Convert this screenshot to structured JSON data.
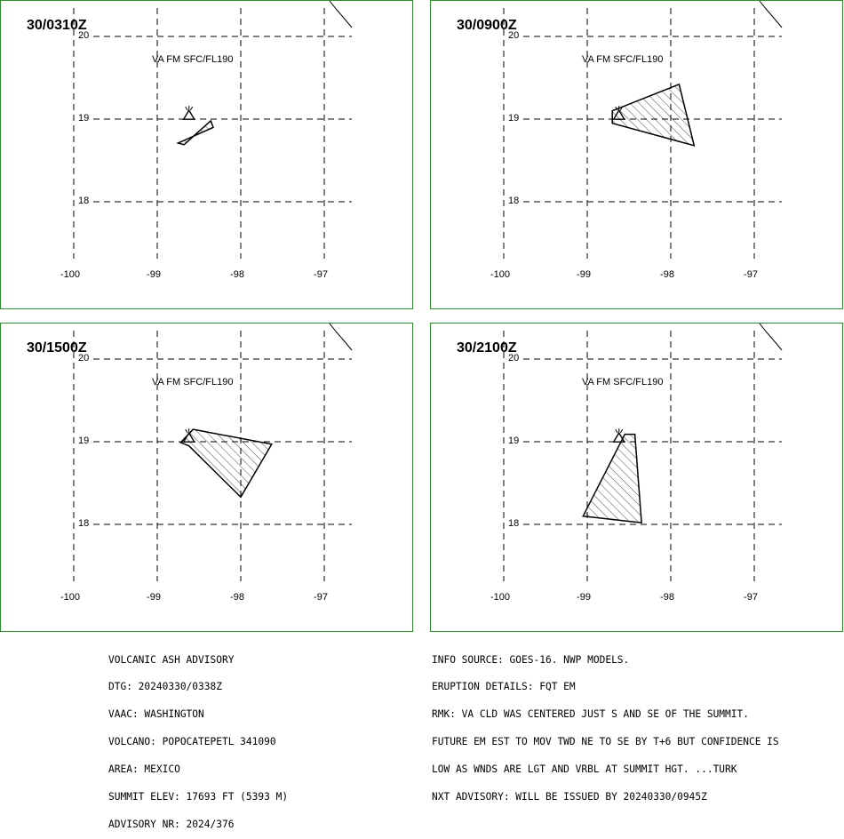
{
  "panels": [
    {
      "title": "30/0310Z",
      "layer": "VA FM SFC/FL190",
      "ash_polygon": [
        [
          -98.68,
          18.69
        ],
        [
          -98.36,
          18.98
        ],
        [
          -98.33,
          18.9
        ],
        [
          -98.75,
          18.71
        ]
      ]
    },
    {
      "title": "30/0900Z",
      "layer": "VA FM SFC/FL190",
      "ash_polygon": [
        [
          -98.7,
          19.1
        ],
        [
          -97.9,
          19.42
        ],
        [
          -97.72,
          18.68
        ],
        [
          -98.7,
          18.95
        ]
      ]
    },
    {
      "title": "30/1500Z",
      "layer": "VA FM SFC/FL190",
      "ash_polygon": [
        [
          -98.72,
          18.99
        ],
        [
          -98.57,
          19.15
        ],
        [
          -97.63,
          18.97
        ],
        [
          -98.0,
          18.33
        ],
        [
          -98.62,
          18.95
        ]
      ]
    },
    {
      "title": "30/2100Z",
      "layer": "VA FM SFC/FL190",
      "ash_polygon": [
        [
          -98.55,
          19.09
        ],
        [
          -98.43,
          19.09
        ],
        [
          -98.35,
          18.02
        ],
        [
          -99.05,
          18.1
        ]
      ]
    }
  ],
  "grid": {
    "longitudes": [
      -100,
      -99,
      -98,
      -97
    ],
    "longitude_labels": [
      "-100",
      "-99",
      "-98",
      "-97"
    ],
    "latitudes": [
      20,
      19,
      18
    ],
    "latitude_labels": [
      "20",
      "19",
      "18"
    ]
  },
  "volcano": {
    "lon": -98.62,
    "lat": 19.02,
    "icon": "volcano-triangle-icon"
  },
  "advisory_left": [
    "VOLCANIC ASH ADVISORY",
    "DTG: 20240330/0338Z",
    "VAAC: WASHINGTON",
    "VOLCANO: POPOCATEPETL 341090",
    "AREA: MEXICO",
    "SUMMIT ELEV: 17693 FT (5393 M)",
    "ADVISORY NR: 2024/376"
  ],
  "advisory_right": [
    "INFO SOURCE: GOES-16. NWP MODELS.",
    "ERUPTION DETAILS: FQT EM",
    "RMK: VA CLD WAS CENTERED JUST S AND SE OF THE SUMMIT.",
    "FUTURE EM EST TO MOV TWD NE TO SE BY T+6 BUT CONFIDENCE IS",
    "LOW AS WNDS ARE LGT AND VRBL AT SUMMIT HGT. ...TURK",
    "NXT ADVISORY: WILL BE ISSUED BY 20240330/0945Z"
  ],
  "colors": {
    "frame": "#2e8b2e",
    "coast": "#000000",
    "grid": "#000000"
  }
}
